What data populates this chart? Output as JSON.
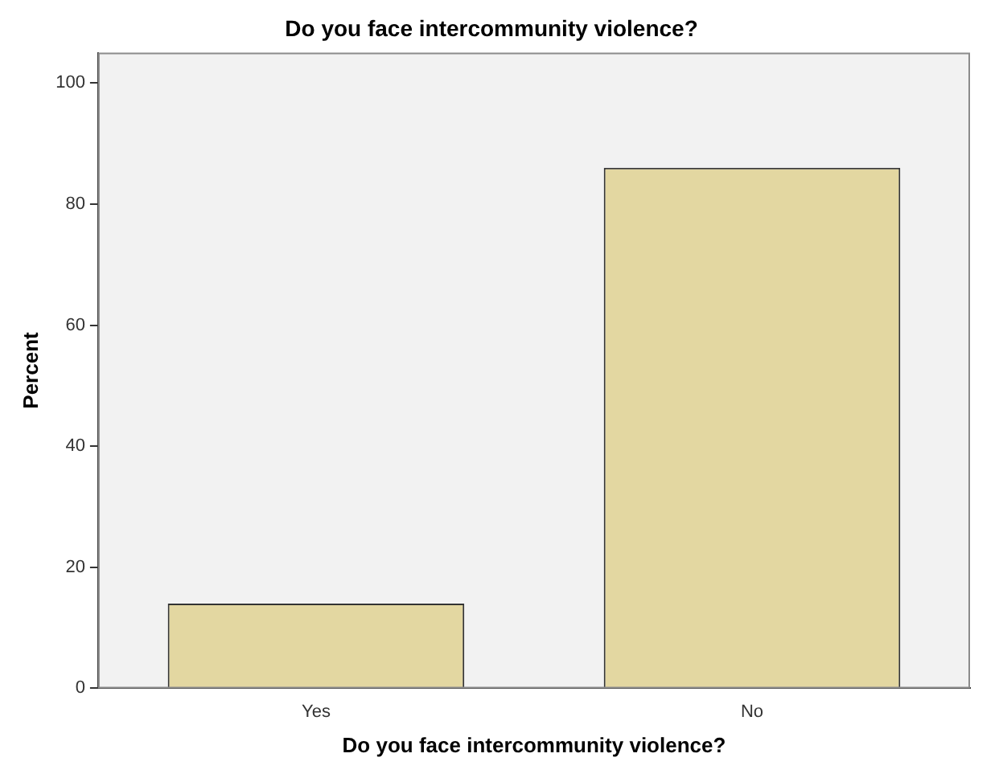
{
  "chart_data": {
    "type": "bar",
    "title": "Do you face intercommunity violence?",
    "xlabel": "Do you face intercommunity violence?",
    "ylabel": "Percent",
    "categories": [
      "Yes",
      "No"
    ],
    "values": [
      14,
      86
    ],
    "color": "#e3d7a1",
    "ylim": [
      0,
      105
    ],
    "yticks": [
      0,
      20,
      40,
      60,
      80,
      100
    ],
    "grid": false,
    "legend": false
  }
}
